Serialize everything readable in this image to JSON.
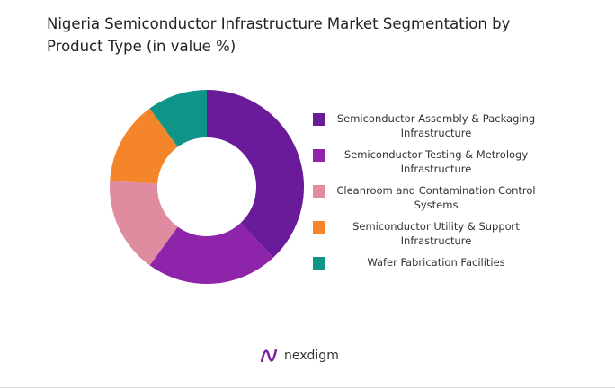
{
  "chart_data": {
    "type": "donut",
    "title": "Nigeria Semiconductor Infrastructure Market Segmentation by Product Type (in value %)",
    "categories": [
      "Semiconductor Assembly & Packaging Infrastructure",
      "Semiconductor Testing & Metrology Infrastructure",
      "Cleanroom and Contamination Control Systems",
      "Semiconductor Utility & Support Infrastructure",
      "Wafer Fabrication Facilities"
    ],
    "values": [
      38,
      22,
      16,
      14,
      10
    ],
    "colors": [
      "#6a1b9a",
      "#8e24aa",
      "#e08ca0",
      "#f5852a",
      "#0f9488"
    ],
    "legend": "right"
  },
  "logo": "nexdigm"
}
